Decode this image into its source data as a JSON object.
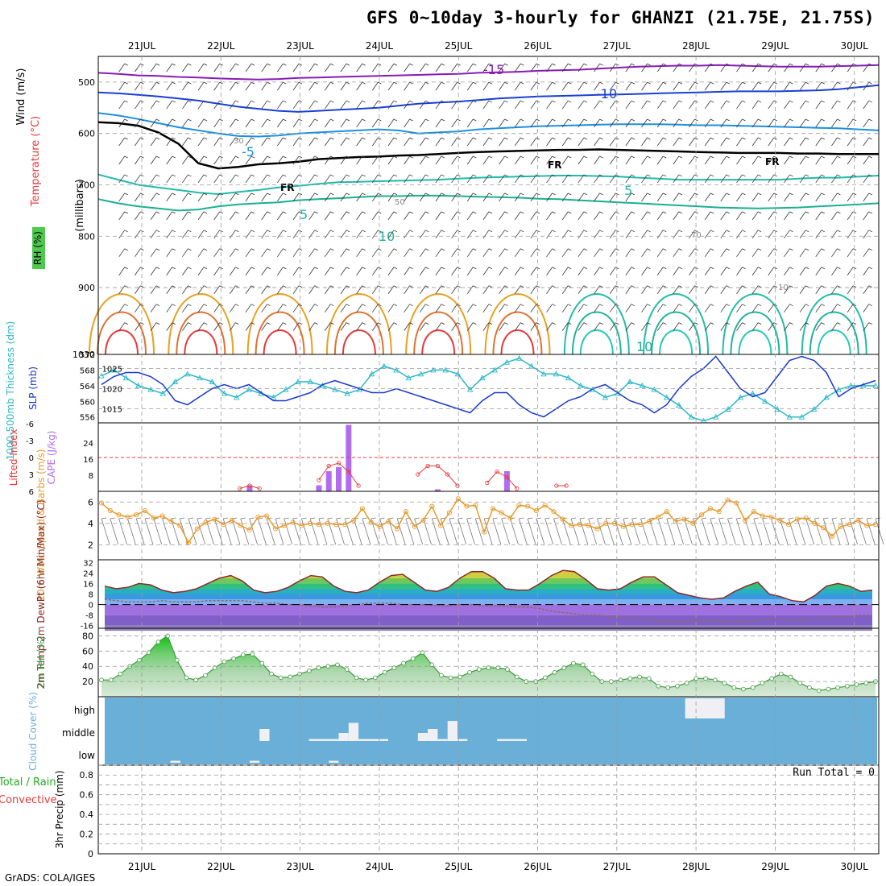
{
  "header": {
    "title": "GFS 0~10day 3-hourly for GHANZI (21.75E, 21.75S)",
    "credit": "GrADS: COLA/IGES",
    "run_total": "Run Total = 0"
  },
  "colors": {
    "rh_green": "#4ec94e",
    "rh_dark": "#8aaa8a",
    "wind_red": "#e8393a",
    "temp_orange": "#e8a020",
    "iso_blue": "#1a3fd6",
    "iso_teal": "#22bbaa",
    "purple": "#8a1ab8",
    "cape_purple": "#b36cf0",
    "thick_cyan": "#2cb8c8",
    "slp_blue": "#1838d0",
    "wind_orange": "#e89a2a",
    "rh2m_green": "#3a9a3a",
    "cloud_blue": "#6aafd8"
  },
  "chart_data": [
    {
      "type": "line",
      "panel": "upper-air",
      "xlabel_days": [
        "21JUL",
        "22JUL",
        "23JUL",
        "24JUL",
        "25JUL",
        "26JUL",
        "27JUL",
        "28JUL",
        "29JUL",
        "30JUL"
      ],
      "ylabel": "(millibars)",
      "yticks": [
        "500",
        "600",
        "700",
        "800",
        "900",
        "1030"
      ],
      "legend": [
        "Wind (m/s)",
        "Temperature (°C)",
        "RH (%)"
      ],
      "isotherm_labels": [
        "-15",
        "-10",
        "-5",
        "5",
        "5",
        "10",
        "10",
        "FR",
        "FR",
        "FR"
      ],
      "rh_labels": [
        "30",
        "50",
        "70",
        "10"
      ],
      "ylim": [
        450,
        1030
      ],
      "isotherms": [
        {
          "name": "-15",
          "values": [
            482,
            484,
            487,
            488,
            490,
            491,
            493,
            494,
            495,
            494,
            492,
            491,
            490,
            489,
            488,
            487,
            486,
            485,
            484,
            482,
            481,
            480,
            478,
            477,
            476,
            474,
            472,
            470,
            469,
            468,
            468,
            467,
            468,
            469,
            470,
            470,
            470,
            469,
            468,
            467
          ]
        },
        {
          "name": "-10",
          "values": [
            520,
            522,
            525,
            528,
            532,
            536,
            542,
            548,
            552,
            556,
            558,
            556,
            554,
            552,
            550,
            546,
            542,
            540,
            538,
            535,
            532,
            530,
            528,
            527,
            526,
            525,
            524,
            523,
            522,
            521,
            520,
            519,
            518,
            518,
            518,
            517,
            516,
            514,
            510,
            506
          ]
        },
        {
          "name": "-5",
          "values": [
            560,
            565,
            572,
            580,
            588,
            594,
            600,
            605,
            606,
            604,
            600,
            598,
            596,
            594,
            592,
            594,
            600,
            598,
            596,
            592,
            590,
            588,
            586,
            585,
            584,
            583,
            582,
            582,
            582,
            583,
            584,
            584,
            585,
            586,
            587,
            588,
            589,
            590,
            592,
            594
          ]
        },
        {
          "name": "FR",
          "values": [
            578,
            580,
            585,
            598,
            620,
            658,
            668,
            665,
            660,
            658,
            655,
            650,
            648,
            646,
            645,
            643,
            642,
            640,
            638,
            636,
            635,
            634,
            633,
            632,
            632,
            631,
            632,
            633,
            634,
            635,
            636,
            637,
            638,
            638,
            638,
            639,
            639,
            640,
            640,
            640
          ]
        },
        {
          "name": "5",
          "values": [
            680,
            690,
            700,
            705,
            710,
            715,
            718,
            714,
            710,
            705,
            702,
            698,
            695,
            694,
            693,
            692,
            691,
            690,
            688,
            686,
            685,
            684,
            683,
            682,
            682,
            683,
            684,
            686,
            688,
            690,
            690,
            690,
            690,
            690,
            690,
            688,
            686,
            686,
            684,
            682
          ]
        },
        {
          "name": "10",
          "values": [
            728,
            736,
            742,
            746,
            750,
            748,
            742,
            738,
            736,
            734,
            730,
            728,
            726,
            724,
            722,
            722,
            721,
            721,
            722,
            723,
            724,
            725,
            727,
            728,
            730,
            732,
            734,
            736,
            738,
            740,
            742,
            744,
            745,
            746,
            745,
            744,
            742,
            740,
            738,
            736
          ]
        }
      ]
    },
    {
      "type": "line",
      "panel": "thickness-slp",
      "ylabel_left": "1000-500mb Thickness (dm)",
      "ylabel_right": "SLP (mb)",
      "yticks_left": [
        "572",
        "568",
        "564",
        "560",
        "556"
      ],
      "yticks_right": [
        "1025",
        "1020",
        "1015"
      ],
      "series": [
        {
          "name": "Thickness",
          "values": [
            566.5,
            568,
            566,
            564,
            563,
            562,
            565,
            567,
            566,
            565,
            562,
            561,
            563,
            562,
            561,
            563,
            565,
            565,
            564,
            563,
            562,
            563,
            567,
            569,
            568,
            566,
            567,
            568,
            568,
            567,
            563,
            566,
            568,
            570,
            571,
            569,
            567,
            567,
            566,
            564,
            563,
            561,
            562,
            565,
            564,
            563,
            561,
            559,
            556,
            555,
            556,
            558,
            561,
            562,
            560,
            558,
            556,
            556,
            558,
            561,
            563,
            564,
            564,
            564
          ]
        },
        {
          "name": "SLP",
          "values": [
            1021,
            1023,
            1024,
            1024,
            1023,
            1021,
            1017,
            1016,
            1018,
            1020,
            1021,
            1020,
            1021,
            1019,
            1017,
            1017,
            1018,
            1019,
            1021,
            1022,
            1021,
            1020,
            1019,
            1019,
            1020,
            1019,
            1018,
            1017,
            1016,
            1015,
            1014,
            1017,
            1019,
            1019,
            1016,
            1014,
            1013,
            1015,
            1017,
            1018,
            1020,
            1021,
            1019,
            1017,
            1016,
            1014,
            1016,
            1020,
            1023,
            1025,
            1028,
            1024,
            1020,
            1018,
            1019,
            1023,
            1027,
            1028,
            1027,
            1024,
            1018,
            1020,
            1021,
            1022
          ]
        }
      ]
    },
    {
      "type": "bar",
      "panel": "stability",
      "ylabel_left": "Lifted Index",
      "ylabel_right": "CAPE (J/kg)",
      "yticks_left": [
        "-6",
        "-3",
        "0",
        "3",
        "6"
      ],
      "yticks_right": [
        "24",
        "16",
        "8"
      ],
      "cape_bars": [
        {
          "index": 14,
          "value": 3
        },
        {
          "index": 21,
          "value": 3
        },
        {
          "index": 22,
          "value": 10
        },
        {
          "index": 23,
          "value": 12
        },
        {
          "index": 24,
          "value": 33
        },
        {
          "index": 33,
          "value": 1
        },
        {
          "index": 40,
          "value": 10
        }
      ],
      "lifted_index_segments": [
        {
          "start": 13,
          "values": [
            5.5,
            5,
            5.5
          ]
        },
        {
          "start": 21,
          "values": [
            4,
            1.5,
            1,
            2.5,
            5
          ]
        },
        {
          "start": 31,
          "values": [
            3,
            1.5,
            1.5,
            3,
            5
          ]
        },
        {
          "start": 38,
          "values": [
            4.5,
            2.5,
            3.5,
            5.5
          ]
        },
        {
          "start": 45,
          "values": [
            5,
            5
          ]
        }
      ]
    },
    {
      "type": "line",
      "panel": "10m-wind",
      "ylabel": "10m Wind Speed & Barbs (m/s)",
      "yticks": [
        "6",
        "4",
        "2"
      ],
      "series": [
        {
          "name": "10m Wind Speed",
          "values": [
            5.9,
            5.2,
            4.8,
            4.6,
            4.8,
            5.2,
            4.5,
            4.7,
            4.2,
            3.8,
            2.2,
            3.5,
            4.1,
            4.4,
            3.9,
            4.3,
            3.8,
            3.4,
            4.6,
            4.7,
            3.5,
            3.8,
            4.1,
            3.8,
            4.0,
            3.9,
            4.0,
            3.9,
            3.9,
            4.3,
            5.4,
            4.1,
            3.7,
            4.2,
            3.5,
            5.1,
            3.7,
            4.3,
            5.6,
            3.8,
            5.0,
            6.3,
            5.6,
            5.7,
            3.2,
            5.4,
            5.0,
            4.5,
            5.7,
            5.6,
            5.2,
            5.7,
            5.1,
            4.4,
            3.8,
            3.9,
            3.8,
            3.5,
            4.0,
            4.0,
            3.7,
            3.9,
            3.9,
            4.2,
            4.6,
            5.1,
            4.2,
            4.4,
            4.0,
            4.8,
            5.4,
            5.1,
            6.2,
            5.9,
            4.3,
            5.1,
            4.7,
            4.6,
            4.3,
            3.9,
            4.4,
            4.5,
            4.0,
            3.6,
            2.8,
            3.7,
            3.9,
            4.3,
            3.8,
            3.9
          ]
        }
      ]
    },
    {
      "type": "area",
      "panel": "2m-temp",
      "ylabel": "2m Temp 2m DewPt (6hr Min/Max) (°C)",
      "yticks": [
        "32",
        "24",
        "16",
        "8",
        "0",
        "-8",
        "-16"
      ],
      "series": [
        {
          "name": "2m Temp",
          "values": [
            14,
            12,
            13,
            16,
            15,
            11,
            9,
            10,
            12,
            16,
            20,
            22,
            18,
            11,
            9,
            10,
            13,
            18,
            22,
            21,
            14,
            10,
            9,
            11,
            17,
            22,
            23,
            17,
            11,
            10,
            13,
            20,
            25,
            25,
            20,
            12,
            11,
            11,
            16,
            22,
            26,
            25,
            19,
            12,
            11,
            12,
            17,
            21,
            21,
            15,
            9,
            7,
            5,
            4,
            5,
            10,
            14,
            17,
            8,
            6,
            3,
            2,
            7,
            14,
            16,
            14,
            10,
            11
          ]
        },
        {
          "name": "2m DewPt",
          "values": [
            4,
            3,
            2,
            2,
            2,
            3,
            2,
            2,
            2,
            3,
            3,
            3,
            3,
            2,
            1,
            1,
            0,
            0,
            -1,
            -2,
            -2,
            -1,
            0,
            1,
            1,
            1,
            0,
            0,
            0,
            -1,
            -1,
            0,
            0,
            -1,
            -1,
            -1,
            -2,
            -2,
            -3,
            -5,
            -6,
            -7,
            -8,
            -8,
            -9,
            -9,
            -10,
            -11,
            -12,
            -13,
            -13,
            -13,
            -12,
            -12,
            -13,
            -13,
            -13,
            -12,
            -11,
            -11,
            -12,
            -12,
            -11,
            -10,
            -9,
            -9,
            -8,
            -8
          ]
        }
      ]
    },
    {
      "type": "area",
      "panel": "2m-rh",
      "ylabel": "2m RH (%)",
      "yticks": [
        "80",
        "60",
        "40",
        "20"
      ],
      "series": [
        {
          "name": "2m RH",
          "values": [
            22,
            22,
            30,
            40,
            48,
            58,
            72,
            80,
            48,
            25,
            22,
            28,
            38,
            46,
            50,
            55,
            56,
            44,
            30,
            25,
            26,
            30,
            34,
            38,
            40,
            42,
            36,
            25,
            22,
            25,
            32,
            38,
            44,
            50,
            58,
            42,
            28,
            25,
            26,
            32,
            36,
            38,
            38,
            36,
            26,
            20,
            20,
            25,
            32,
            38,
            44,
            42,
            30,
            20,
            20,
            22,
            24,
            26,
            24,
            14,
            12,
            14,
            18,
            24,
            24,
            22,
            18,
            12,
            10,
            12,
            18,
            24,
            30,
            26,
            18,
            12,
            8,
            10,
            12,
            14,
            16,
            18,
            20
          ]
        }
      ]
    },
    {
      "type": "bar",
      "panel": "cloud-cover",
      "ylabel": "Cloud Cover (%)",
      "ytick_labels": [
        "high",
        "middle",
        "low"
      ],
      "bars": [
        {
          "level": "high",
          "start": 59,
          "end": 63,
          "value": 100
        },
        {
          "level": "middle",
          "start": 16,
          "end": 17,
          "value": 60
        },
        {
          "level": "middle",
          "start": 21,
          "end": 24,
          "value": 10
        },
        {
          "level": "middle",
          "start": 24,
          "end": 25,
          "value": 40
        },
        {
          "level": "middle",
          "start": 25,
          "end": 26,
          "value": 90
        },
        {
          "level": "middle",
          "start": 26,
          "end": 29,
          "value": 10
        },
        {
          "level": "middle",
          "start": 32,
          "end": 33,
          "value": 40
        },
        {
          "level": "middle",
          "start": 33,
          "end": 34,
          "value": 60
        },
        {
          "level": "middle",
          "start": 34,
          "end": 35,
          "value": 10
        },
        {
          "level": "middle",
          "start": 35,
          "end": 36,
          "value": 100
        },
        {
          "level": "middle",
          "start": 36,
          "end": 37,
          "value": 10
        },
        {
          "level": "middle",
          "start": 40,
          "end": 43,
          "value": 10
        },
        {
          "level": "low",
          "start": 7,
          "end": 8,
          "value": 10
        },
        {
          "level": "low",
          "start": 15,
          "end": 16,
          "value": 10
        },
        {
          "level": "low",
          "start": 23,
          "end": 24,
          "value": 10
        }
      ]
    },
    {
      "type": "bar",
      "panel": "precip",
      "ylabel": "3hr Precip (mm)",
      "legend": [
        "Total / Rain",
        "Convective"
      ],
      "yticks": [
        "0.8",
        "0.6",
        "0.4",
        "0.2",
        "0"
      ],
      "ylim": [
        0,
        0.9
      ],
      "values": []
    }
  ]
}
